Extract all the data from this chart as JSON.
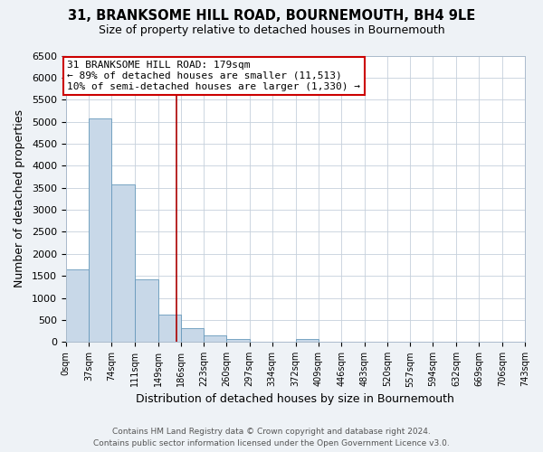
{
  "title": "31, BRANKSOME HILL ROAD, BOURNEMOUTH, BH4 9LE",
  "subtitle": "Size of property relative to detached houses in Bournemouth",
  "xlabel": "Distribution of detached houses by size in Bournemouth",
  "ylabel": "Number of detached properties",
  "bin_edges": [
    0,
    37,
    74,
    111,
    149,
    186,
    223,
    260,
    297,
    334,
    372,
    409,
    446,
    483,
    520,
    557,
    594,
    632,
    669,
    706,
    743
  ],
  "bin_heights": [
    1650,
    5080,
    3580,
    1430,
    615,
    305,
    155,
    65,
    0,
    0,
    60,
    0,
    0,
    0,
    0,
    0,
    0,
    0,
    0,
    0
  ],
  "bar_color": "#c8d8e8",
  "bar_edge_color": "#6699bb",
  "property_line_x": 179,
  "property_line_color": "#aa0000",
  "annotation_box_edge_color": "#cc0000",
  "annotation_text_line1": "31 BRANKSOME HILL ROAD: 179sqm",
  "annotation_text_line2": "← 89% of detached houses are smaller (11,513)",
  "annotation_text_line3": "10% of semi-detached houses are larger (1,330) →",
  "ylim": [
    0,
    6500
  ],
  "yticks": [
    0,
    500,
    1000,
    1500,
    2000,
    2500,
    3000,
    3500,
    4000,
    4500,
    5000,
    5500,
    6000,
    6500
  ],
  "tick_labels": [
    "0sqm",
    "37sqm",
    "74sqm",
    "111sqm",
    "149sqm",
    "186sqm",
    "223sqm",
    "260sqm",
    "297sqm",
    "334sqm",
    "372sqm",
    "409sqm",
    "446sqm",
    "483sqm",
    "520sqm",
    "557sqm",
    "594sqm",
    "632sqm",
    "669sqm",
    "706sqm",
    "743sqm"
  ],
  "footer_line1": "Contains HM Land Registry data © Crown copyright and database right 2024.",
  "footer_line2": "Contains public sector information licensed under the Open Government Licence v3.0.",
  "background_color": "#eef2f6",
  "plot_background_color": "#ffffff",
  "grid_color": "#c5d0dc"
}
